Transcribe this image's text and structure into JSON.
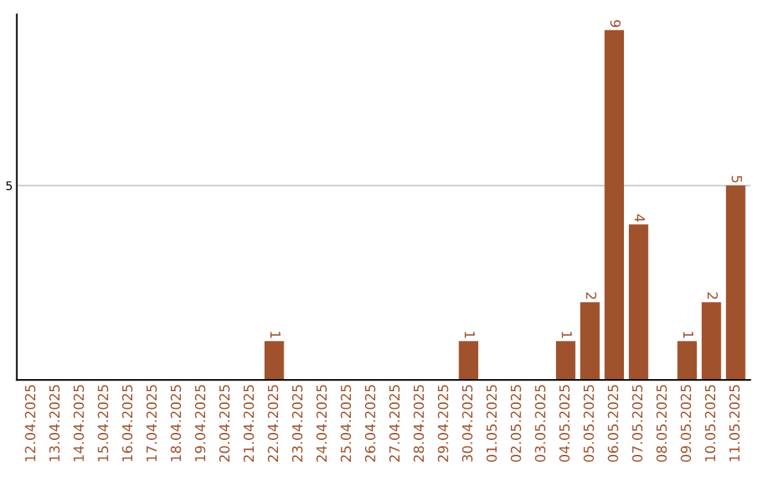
{
  "chart_data": {
    "type": "bar",
    "categories": [
      "12.04.2025",
      "13.04.2025",
      "14.04.2025",
      "15.04.2025",
      "16.04.2025",
      "17.04.2025",
      "18.04.2025",
      "19.04.2025",
      "20.04.2025",
      "21.04.2025",
      "22.04.2025",
      "23.04.2025",
      "24.04.2025",
      "25.04.2025",
      "26.04.2025",
      "27.04.2025",
      "28.04.2025",
      "29.04.2025",
      "30.04.2025",
      "01.05.2025",
      "02.05.2025",
      "03.05.2025",
      "04.05.2025",
      "05.05.2025",
      "06.05.2025",
      "07.05.2025",
      "08.05.2025",
      "09.05.2025",
      "10.05.2025",
      "11.05.2025"
    ],
    "values": [
      0,
      0,
      0,
      0,
      0,
      0,
      0,
      0,
      0,
      0,
      1,
      0,
      0,
      0,
      0,
      0,
      0,
      0,
      1,
      0,
      0,
      0,
      1,
      2,
      9,
      4,
      0,
      1,
      2,
      5
    ],
    "value_labels": [
      null,
      null,
      null,
      null,
      null,
      null,
      null,
      null,
      null,
      null,
      "1",
      null,
      null,
      null,
      null,
      null,
      null,
      null,
      "1",
      null,
      null,
      null,
      "1",
      "2",
      "9",
      "4",
      null,
      "1",
      "2",
      "5"
    ],
    "color": "#a0522d",
    "ylim": [
      0,
      9.4
    ],
    "yticks": [
      5
    ],
    "grid": "y"
  }
}
